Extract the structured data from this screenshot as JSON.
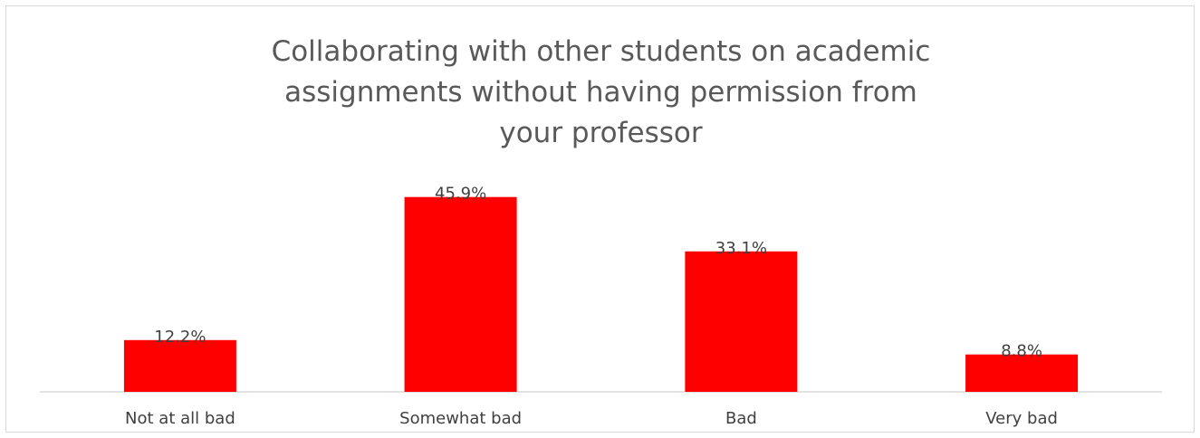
{
  "chart_data": {
    "type": "bar",
    "title_lines": [
      "Collaborating with other students on academic",
      "assignments without having permission from",
      "your professor"
    ],
    "categories": [
      "Not at all bad",
      "Somewhat bad",
      "Bad",
      "Very bad"
    ],
    "values": [
      12.2,
      45.9,
      33.1,
      8.8
    ],
    "value_labels": [
      "12.2%",
      "45.9%",
      "33.1%",
      "8.8%"
    ],
    "unit": "%",
    "bar_color": "#ff0000",
    "grid": false,
    "legend": "none",
    "ylim": [
      0,
      50
    ]
  }
}
